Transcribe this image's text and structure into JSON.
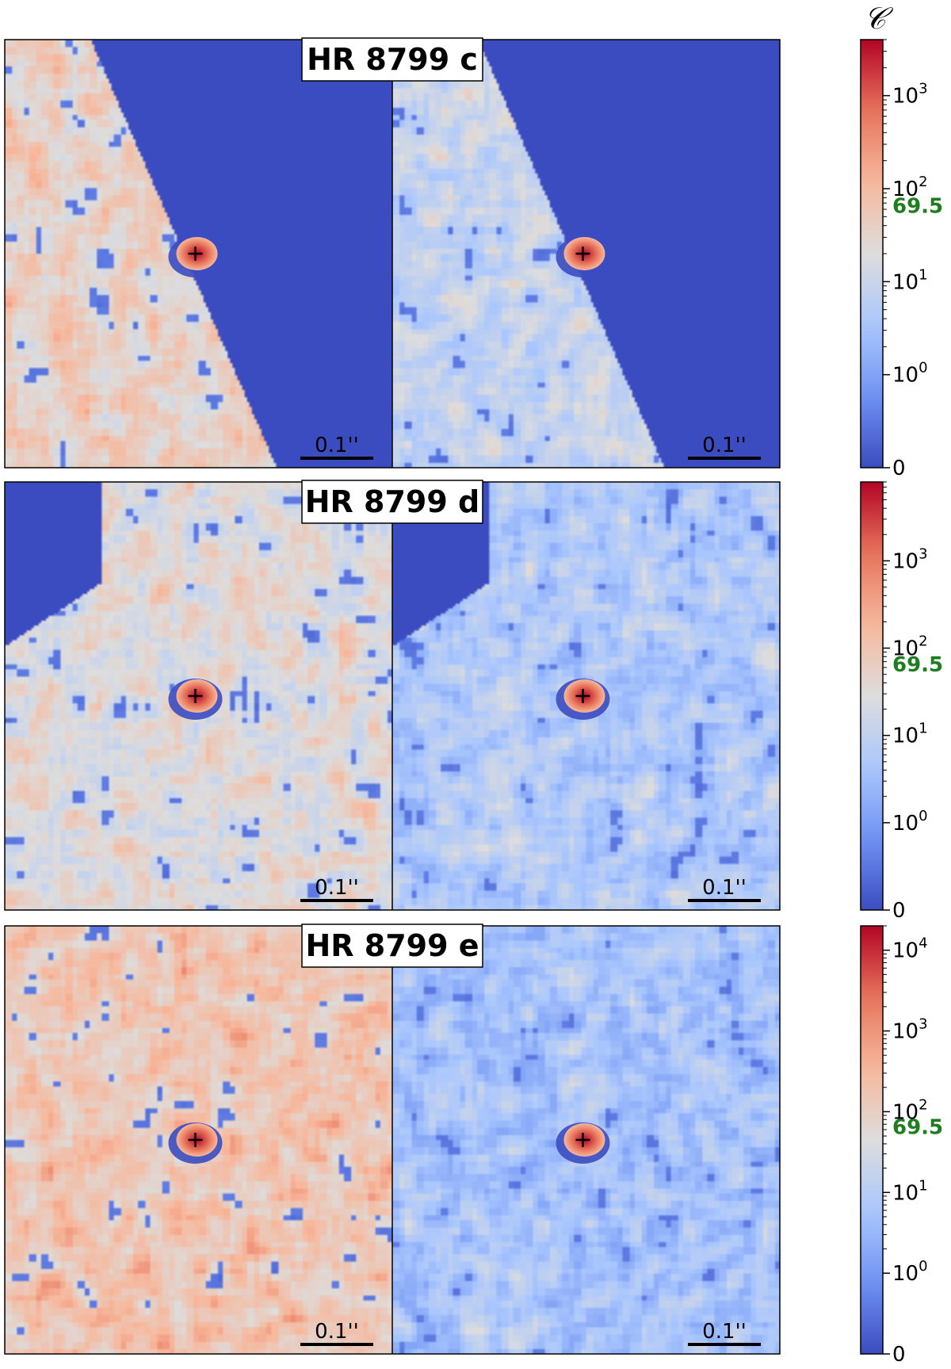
{
  "colors": {
    "colormap": [
      "#3b4cc0",
      "#6f92f3",
      "#aac7fd",
      "#dddddd",
      "#f7b89c",
      "#e7745b",
      "#b40426"
    ],
    "masked": "#3b4cc0",
    "threshold": "#1e7d1e"
  },
  "colorbar_symbol": "𝒞",
  "chart_data": [
    {
      "type": "heatmap",
      "title": "HR 8799 c",
      "panels": 2,
      "scale": "symlog",
      "zlim": [
        0,
        4000
      ],
      "ticks": [
        {
          "value": 0,
          "label": "0"
        },
        {
          "value": 1,
          "base": "10",
          "exp": "0"
        },
        {
          "value": 10,
          "base": "10",
          "exp": "1"
        },
        {
          "value": 100,
          "base": "10",
          "exp": "2"
        },
        {
          "value": 1000,
          "base": "10",
          "exp": "3"
        }
      ],
      "threshold": {
        "value": 69.5,
        "label": "69.5"
      },
      "scale_bar": "0.1''",
      "detection": {
        "x": 0.5,
        "y": 0.5
      },
      "background_level": [
        0.55,
        0.42
      ],
      "masked_region": "upper-right"
    },
    {
      "type": "heatmap",
      "title": "HR 8799 d",
      "panels": 2,
      "scale": "symlog",
      "zlim": [
        0,
        8000
      ],
      "ticks": [
        {
          "value": 0,
          "label": "0"
        },
        {
          "value": 1,
          "base": "10",
          "exp": "0"
        },
        {
          "value": 10,
          "base": "10",
          "exp": "1"
        },
        {
          "value": 100,
          "base": "10",
          "exp": "2"
        },
        {
          "value": 1000,
          "base": "10",
          "exp": "3"
        }
      ],
      "threshold": {
        "value": 69.5,
        "label": "69.5"
      },
      "scale_bar": "0.1''",
      "detection": {
        "x": 0.5,
        "y": 0.5
      },
      "background_level": [
        0.5,
        0.35
      ],
      "masked_region": "upper-left"
    },
    {
      "type": "heatmap",
      "title": "HR 8799 e",
      "panels": 2,
      "scale": "symlog",
      "zlim": [
        0,
        20000
      ],
      "ticks": [
        {
          "value": 0,
          "label": "0"
        },
        {
          "value": 1,
          "base": "10",
          "exp": "0"
        },
        {
          "value": 10,
          "base": "10",
          "exp": "1"
        },
        {
          "value": 100,
          "base": "10",
          "exp": "2"
        },
        {
          "value": 1000,
          "base": "10",
          "exp": "3"
        },
        {
          "value": 10000,
          "base": "10",
          "exp": "4"
        }
      ],
      "threshold": {
        "value": 69.5,
        "label": "69.5"
      },
      "scale_bar": "0.1''",
      "detection": {
        "x": 0.5,
        "y": 0.5
      },
      "background_level": [
        0.6,
        0.32
      ],
      "masked_region": "none"
    }
  ]
}
